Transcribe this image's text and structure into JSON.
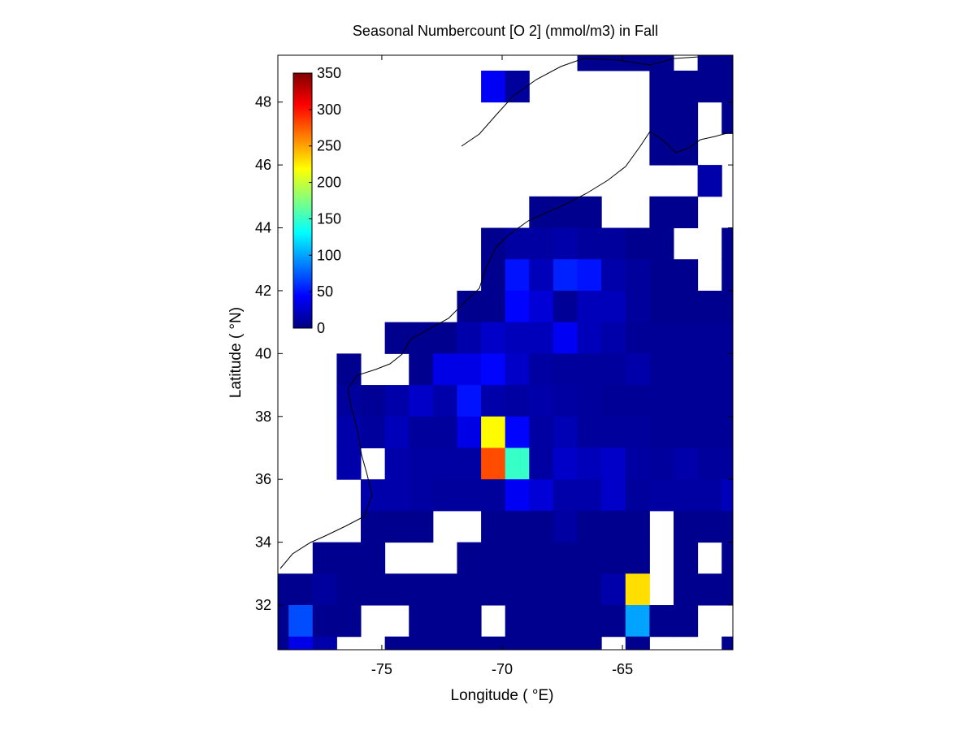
{
  "chart_data": {
    "type": "heatmap",
    "title": "Seasonal Numbercount [O 2] (mmol/m3) in  Fall",
    "xlabel": "Longitude ( °E)",
    "ylabel": "Latitude ( °N)",
    "x": [
      -79.375,
      -78.375,
      -77.375,
      -76.375,
      -75.375,
      -74.375,
      -73.375,
      -72.375,
      -71.375,
      -70.375,
      -69.375,
      -68.375,
      -67.375,
      -66.375,
      -65.375,
      -64.375,
      -63.375,
      -62.375,
      -61.375,
      -60.375
    ],
    "y": [
      49.5,
      48.5,
      47.5,
      46.5,
      45.5,
      44.5,
      43.5,
      42.5,
      41.5,
      40.5,
      39.5,
      38.5,
      37.5,
      36.5,
      35.5,
      34.5,
      33.5,
      32.5,
      31.5,
      30.5
    ],
    "z": [
      [
        null,
        null,
        null,
        null,
        null,
        null,
        null,
        null,
        null,
        null,
        null,
        null,
        null,
        5,
        5,
        5,
        5,
        null,
        5,
        5
      ],
      [
        null,
        null,
        null,
        null,
        null,
        null,
        null,
        null,
        null,
        40,
        10,
        null,
        null,
        null,
        null,
        null,
        5,
        5,
        5,
        5
      ],
      [
        null,
        null,
        null,
        null,
        null,
        null,
        null,
        null,
        null,
        null,
        null,
        null,
        null,
        null,
        null,
        null,
        5,
        5,
        null,
        5
      ],
      [
        null,
        null,
        null,
        null,
        null,
        null,
        null,
        null,
        null,
        null,
        null,
        null,
        null,
        null,
        null,
        null,
        5,
        5,
        null,
        null
      ],
      [
        null,
        null,
        null,
        null,
        null,
        null,
        null,
        null,
        null,
        null,
        null,
        null,
        null,
        null,
        null,
        null,
        null,
        null,
        15,
        null
      ],
      [
        null,
        null,
        null,
        null,
        null,
        null,
        null,
        null,
        null,
        null,
        null,
        5,
        5,
        5,
        null,
        null,
        5,
        5,
        null,
        null
      ],
      [
        null,
        null,
        null,
        null,
        null,
        null,
        null,
        null,
        null,
        5,
        12,
        12,
        15,
        10,
        10,
        5,
        5,
        null,
        null,
        5
      ],
      [
        null,
        null,
        null,
        null,
        null,
        null,
        null,
        null,
        null,
        5,
        50,
        20,
        55,
        50,
        15,
        10,
        5,
        5,
        null,
        5
      ],
      [
        null,
        null,
        null,
        null,
        null,
        null,
        null,
        null,
        5,
        5,
        45,
        30,
        8,
        20,
        20,
        10,
        5,
        5,
        5,
        5
      ],
      [
        null,
        null,
        null,
        null,
        null,
        5,
        5,
        5,
        15,
        25,
        20,
        20,
        40,
        20,
        15,
        8,
        8,
        8,
        8,
        8
      ],
      [
        null,
        null,
        null,
        5,
        null,
        null,
        5,
        35,
        35,
        45,
        25,
        12,
        10,
        10,
        10,
        15,
        8,
        8,
        8,
        8
      ],
      [
        null,
        null,
        null,
        10,
        8,
        15,
        25,
        15,
        50,
        15,
        12,
        15,
        12,
        10,
        8,
        8,
        8,
        8,
        8,
        8
      ],
      [
        null,
        null,
        null,
        15,
        10,
        20,
        10,
        10,
        35,
        220,
        45,
        12,
        18,
        10,
        10,
        10,
        8,
        8,
        8,
        8
      ],
      [
        null,
        null,
        null,
        15,
        null,
        15,
        12,
        12,
        12,
        280,
        150,
        12,
        25,
        20,
        25,
        12,
        10,
        15,
        10,
        10
      ],
      [
        null,
        null,
        null,
        null,
        15,
        15,
        12,
        10,
        10,
        10,
        40,
        30,
        15,
        15,
        25,
        10,
        12,
        12,
        12,
        20
      ],
      [
        null,
        null,
        null,
        null,
        5,
        5,
        5,
        null,
        null,
        5,
        5,
        5,
        12,
        5,
        5,
        5,
        null,
        5,
        5,
        5
      ],
      [
        null,
        null,
        5,
        5,
        5,
        null,
        null,
        null,
        5,
        5,
        5,
        5,
        5,
        5,
        5,
        5,
        null,
        5,
        null,
        5
      ],
      [
        5,
        5,
        10,
        5,
        5,
        5,
        5,
        5,
        5,
        5,
        5,
        5,
        5,
        5,
        15,
        230,
        null,
        5,
        5,
        5
      ],
      [
        5,
        70,
        5,
        5,
        null,
        null,
        5,
        5,
        5,
        null,
        5,
        5,
        5,
        5,
        5,
        100,
        5,
        5,
        null,
        null
      ],
      [
        5,
        35,
        15,
        null,
        null,
        5,
        5,
        5,
        5,
        5,
        5,
        5,
        5,
        5,
        null,
        5,
        null,
        null,
        null,
        5
      ]
    ],
    "xlim": [
      -79.32,
      -60.41
    ],
    "ylim": [
      30.58,
      49.49
    ],
    "xticks": [
      -75,
      -70,
      -65
    ],
    "yticks": [
      32,
      34,
      36,
      38,
      40,
      42,
      44,
      46,
      48
    ],
    "colormap": "jet",
    "clim": [
      0,
      350
    ],
    "cticks": [
      0,
      50,
      100,
      150,
      200,
      250,
      300,
      350
    ]
  }
}
